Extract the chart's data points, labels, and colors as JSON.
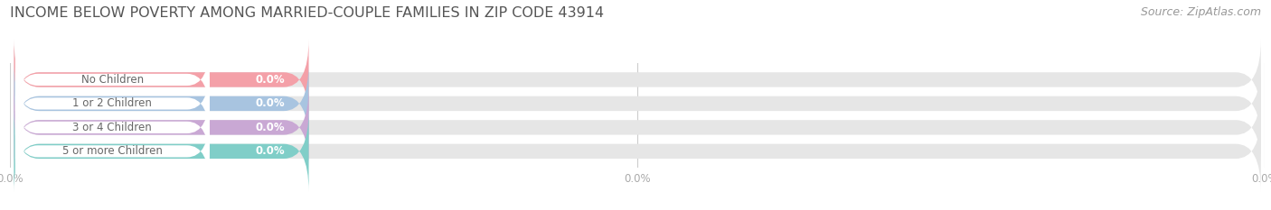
{
  "title": "INCOME BELOW POVERTY AMONG MARRIED-COUPLE FAMILIES IN ZIP CODE 43914",
  "source": "Source: ZipAtlas.com",
  "categories": [
    "No Children",
    "1 or 2 Children",
    "3 or 4 Children",
    "5 or more Children"
  ],
  "values": [
    0.0,
    0.0,
    0.0,
    0.0
  ],
  "bar_colors": [
    "#f4a0a8",
    "#a8c4e0",
    "#c9a8d4",
    "#80cec8"
  ],
  "bar_bg_color": "#e6e6e6",
  "background_color": "#ffffff",
  "title_fontsize": 11.5,
  "source_fontsize": 9,
  "bar_height": 0.62,
  "figsize": [
    14.06,
    2.33
  ],
  "dpi": 100,
  "tick_label_color": "#aaaaaa",
  "category_color": "#666666",
  "value_text_color": "#ffffff",
  "grid_color": "#cccccc"
}
